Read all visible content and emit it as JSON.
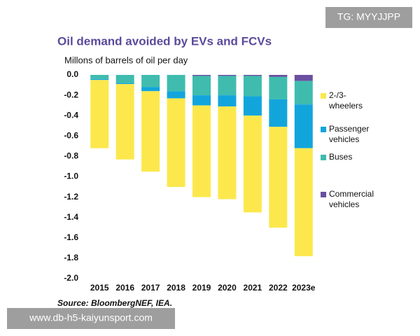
{
  "chart_data": {
    "type": "stacked-bar",
    "title": "Oil demand avoided by EVs and FCVs",
    "subtitle": "Millons of barrels of oil per day",
    "source": "Source: BloombergNEF, IEA.",
    "watermark_top": "TG: MYYJJPP",
    "watermark_bottom": "www.db-h5-kaiyunsport.com",
    "categories": [
      "2015",
      "2016",
      "2017",
      "2018",
      "2019",
      "2020",
      "2021",
      "2022",
      "2023e"
    ],
    "series": [
      {
        "name": "2-/3-wheelers",
        "color": "#fce84d",
        "values": [
          -0.67,
          -0.74,
          -0.79,
          -0.87,
          -0.9,
          -0.91,
          -0.95,
          -0.99,
          -1.06
        ]
      },
      {
        "name": "Passenger vehicles",
        "color": "#12a5dc",
        "values": [
          -0.01,
          -0.01,
          -0.04,
          -0.07,
          -0.1,
          -0.11,
          -0.19,
          -0.27,
          -0.43
        ]
      },
      {
        "name": "Buses",
        "color": "#3fbcae",
        "values": [
          -0.04,
          -0.08,
          -0.12,
          -0.16,
          -0.19,
          -0.19,
          -0.2,
          -0.22,
          -0.23
        ]
      },
      {
        "name": "Commercial vehicles",
        "color": "#6a4fa0",
        "values": [
          0,
          0,
          0,
          0,
          -0.01,
          -0.01,
          -0.01,
          -0.02,
          -0.06
        ]
      }
    ],
    "ylim": [
      -2.0,
      0.0
    ],
    "yticks": [
      {
        "value": 0,
        "label": "0.0"
      },
      -0.2,
      -0.4,
      -0.6,
      -0.8,
      {
        "value": -1,
        "label": "-1.0"
      },
      -1.2,
      -1.4,
      -1.6,
      -1.8,
      {
        "value": -2,
        "label": "-2.0"
      }
    ],
    "grid": false,
    "legend": "right"
  }
}
